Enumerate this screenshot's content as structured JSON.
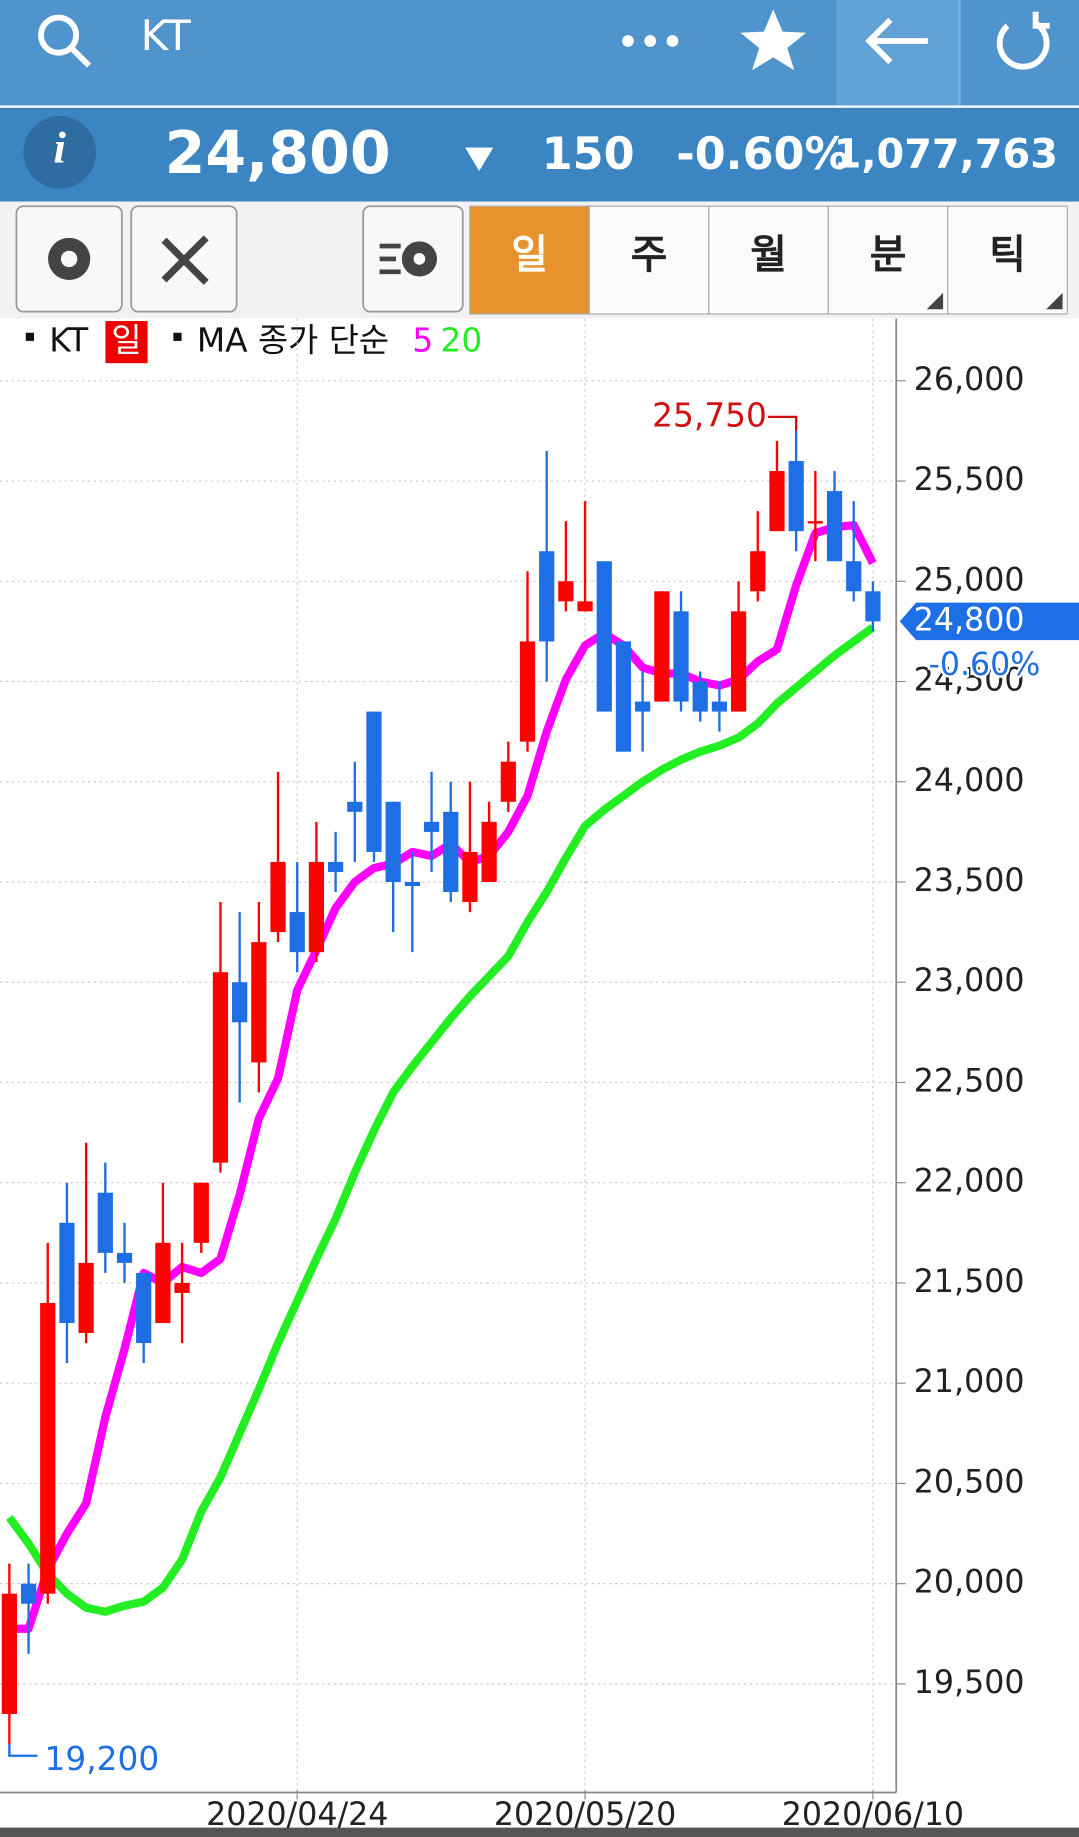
{
  "header": {
    "symbol": "KT"
  },
  "quote": {
    "info": "i",
    "price": "24,800",
    "change": "150",
    "change_pct": "-0.60%",
    "volume": "1,077,763"
  },
  "periods": [
    "일",
    "주",
    "월",
    "분",
    "틱"
  ],
  "chart_data": {
    "type": "candlestick",
    "legend": {
      "symbol": "KT",
      "period": "일",
      "ma_label": "MA 종가 단순"
    },
    "categories": [
      null,
      null,
      null,
      null,
      null,
      null,
      null,
      null,
      null,
      null,
      null,
      null,
      null,
      null,
      null,
      "2020/04/24",
      null,
      null,
      null,
      null,
      null,
      null,
      null,
      null,
      null,
      null,
      null,
      null,
      null,
      null,
      "2020/05/20",
      null,
      null,
      null,
      null,
      null,
      null,
      null,
      null,
      null,
      null,
      null,
      null,
      null,
      null,
      "2020/06/10"
    ],
    "open": [
      19350,
      20000,
      19950,
      21800,
      21250,
      21950,
      21650,
      21550,
      21300,
      21450,
      21700,
      22100,
      23000,
      22600,
      23250,
      23350,
      23150,
      23600,
      23900,
      24350,
      23900,
      23500,
      23800,
      23850,
      23400,
      23500,
      23900,
      24200,
      25150,
      24900,
      24850,
      25100,
      24700,
      24400,
      24400,
      24850,
      24500,
      24400,
      24350,
      24950,
      25250,
      25600,
      25300,
      25450,
      25100,
      24950
    ],
    "high": [
      20100,
      20100,
      21700,
      22000,
      22200,
      22100,
      21800,
      21550,
      22000,
      21700,
      22000,
      23400,
      23350,
      23400,
      24050,
      23600,
      23800,
      23750,
      24100,
      24350,
      23900,
      23650,
      24050,
      24000,
      24000,
      23900,
      24200,
      25050,
      25650,
      25300,
      25400,
      25100,
      24700,
      24550,
      24950,
      24950,
      24550,
      24500,
      25000,
      25350,
      25700,
      25750,
      25550,
      25550,
      25400,
      25000
    ],
    "low": [
      19200,
      19650,
      19900,
      21100,
      21200,
      21550,
      21500,
      21100,
      21300,
      21200,
      21650,
      22050,
      22400,
      22450,
      23200,
      23050,
      23100,
      23450,
      23600,
      23600,
      23250,
      23150,
      23550,
      23400,
      23350,
      23500,
      23850,
      24150,
      24500,
      24850,
      24850,
      24350,
      24150,
      24150,
      24400,
      24350,
      24300,
      24250,
      24350,
      24900,
      25250,
      25150,
      25100,
      25100,
      24900,
      24750
    ],
    "close": [
      19950,
      19900,
      21400,
      21300,
      21600,
      21650,
      21600,
      21200,
      21700,
      21500,
      22000,
      23050,
      22800,
      23200,
      23600,
      23150,
      23600,
      23550,
      23850,
      23650,
      23500,
      23480,
      23750,
      23450,
      23650,
      23800,
      24100,
      24700,
      24700,
      25000,
      24900,
      24350,
      24150,
      24350,
      24950,
      24400,
      24350,
      24350,
      24850,
      25150,
      25550,
      25250,
      25300,
      25100,
      24950,
      24800
    ],
    "up_color": "#ff0000",
    "down_color": "#1e6ee6",
    "series": [
      {
        "name": "5",
        "color": "#ff00ff",
        "values": [
          19775,
          19775,
          20070,
          20250,
          20400,
          20830,
          21170,
          21550,
          21500,
          21580,
          21550,
          21620,
          21940,
          22320,
          22520,
          22960,
          23160,
          23370,
          23500,
          23570,
          23590,
          23650,
          23630,
          23690,
          23600,
          23630,
          23750,
          23930,
          24250,
          24510,
          24680,
          24740,
          24680,
          24570,
          24540,
          24540,
          24500,
          24480,
          24510,
          24600,
          24660,
          24980,
          25240,
          25270,
          25280,
          25090
        ]
      },
      {
        "name": "20",
        "color": "#22ee22",
        "values": [
          20330,
          20200,
          20050,
          19950,
          19880,
          19860,
          19890,
          19910,
          19980,
          20120,
          20360,
          20530,
          20750,
          20970,
          21200,
          21410,
          21620,
          21820,
          22050,
          22260,
          22450,
          22580,
          22700,
          22820,
          22930,
          23030,
          23130,
          23300,
          23450,
          23620,
          23780,
          23860,
          23930,
          24000,
          24060,
          24110,
          24150,
          24180,
          24220,
          24290,
          24390,
          24470,
          24550,
          24630,
          24700,
          24770
        ]
      }
    ],
    "ylim": [
      18970,
      26310
    ],
    "yticks": [
      {
        "value": 19500,
        "label": "19,500"
      },
      {
        "value": 20000,
        "label": "20,000"
      },
      {
        "value": 20500,
        "label": "20,500"
      },
      {
        "value": 21000,
        "label": "21,000"
      },
      {
        "value": 21500,
        "label": "21,500"
      },
      {
        "value": 22000,
        "label": "22,000"
      },
      {
        "value": 22500,
        "label": "22,500"
      },
      {
        "value": 23000,
        "label": "23,000"
      },
      {
        "value": 23500,
        "label": "23,500"
      },
      {
        "value": 24000,
        "label": "24,000"
      },
      {
        "value": 24500,
        "label": "24,500"
      },
      {
        "value": 25000,
        "label": "25,000"
      },
      {
        "value": 25500,
        "label": "25,500"
      },
      {
        "value": 26000,
        "label": "26,000"
      }
    ],
    "grid": true,
    "annotations": {
      "high": {
        "value": 25750,
        "label": "25,750"
      },
      "low": {
        "value": 19200,
        "label": "19,200"
      },
      "last": {
        "value": 24800,
        "label": "24,800",
        "change": "-0.60%"
      }
    }
  }
}
